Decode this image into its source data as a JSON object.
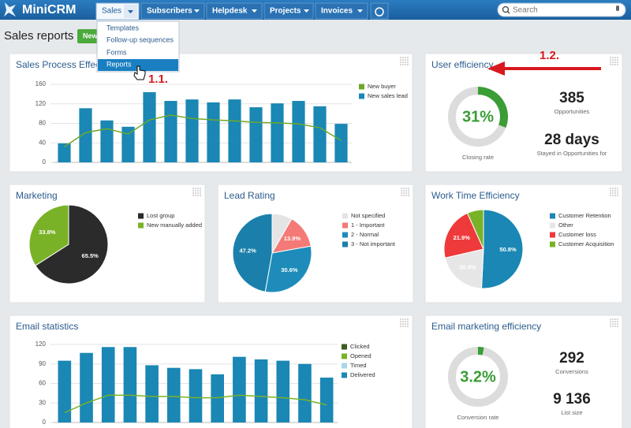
{
  "nav": {
    "logo": "MiniCRM",
    "tabs": [
      "Sales",
      "Subscribers",
      "Helpdesk",
      "Projects",
      "Invoices"
    ],
    "search": "Search"
  },
  "header": {
    "title": "Sales reports",
    "button": "New"
  },
  "menu": {
    "items": [
      "Templates",
      "Follow-up sequences",
      "Forms",
      "Reports"
    ]
  },
  "annotations": [
    "1.1.",
    "1.2."
  ],
  "chart_data": [
    {
      "type": "bar",
      "title": "Sales Process Effectiveness",
      "ylim": [
        0,
        160
      ],
      "yticks": [
        0,
        40,
        80,
        120,
        160
      ],
      "grid": true,
      "series": [
        {
          "name": "New buyer",
          "type": "line",
          "color": "#6fa82a",
          "values": [
            32,
            61,
            69,
            58,
            87,
            97,
            90,
            87,
            85,
            82,
            81,
            79,
            71,
            45
          ]
        },
        {
          "name": "New sales lead",
          "type": "bar",
          "color": "#1a87b4",
          "values": [
            39,
            111,
            86,
            73,
            144,
            126,
            129,
            123,
            129,
            113,
            121,
            126,
            115,
            79
          ]
        }
      ]
    },
    {
      "type": "gauge",
      "title": "User efficiency",
      "values": [
        31
      ],
      "value_labels": [
        "31%"
      ],
      "color": "#3a9d35",
      "caption": "Closing rate",
      "stats": [
        {
          "value": "385",
          "label": "Opportunities"
        },
        {
          "value": "28 days",
          "label": "Stayed in Opportunities for"
        }
      ]
    },
    {
      "type": "pie",
      "title": "Marketing",
      "categories": [
        "Lost group",
        "New manually added"
      ],
      "values": [
        65.5,
        33.8
      ],
      "value_labels": [
        "65.5%",
        "33.8%"
      ],
      "colors": [
        "#2b2b2b",
        "#7ab227"
      ]
    },
    {
      "type": "pie",
      "title": "Lead Rating",
      "categories": [
        "Not specified",
        "1 - Important",
        "2 - Normal",
        "3 - Not important"
      ],
      "values": [
        8.3,
        13.9,
        30.6,
        47.2
      ],
      "value_labels": [
        null,
        "13.9%",
        "30.6%",
        "47.2%"
      ],
      "colors": [
        "#e4e4e4",
        "#f37a76",
        "#1e8cba",
        "#1a80ab"
      ]
    },
    {
      "type": "pie",
      "title": "Work Time Efficiency",
      "categories": [
        "Customer Retention",
        "Other",
        "Customer loss",
        "Customer Acquisition"
      ],
      "values": [
        50.8,
        20.6,
        21.9,
        6.7
      ],
      "value_labels": [
        "50.8%",
        "20.6%",
        "21.9%",
        null
      ],
      "colors": [
        "#1a87b4",
        "#e6e6e6",
        "#ee3a3a",
        "#7ab227"
      ]
    },
    {
      "type": "bar",
      "title": "Email statistics",
      "ylim": [
        0,
        120
      ],
      "yticks": [
        0,
        30,
        60,
        90,
        120
      ],
      "grid": true,
      "series": [
        {
          "name": "Clicked",
          "type": "line",
          "color": "#3f5b1f",
          "values": [
            null,
            null,
            null,
            null,
            null,
            null,
            null,
            null,
            null,
            null,
            null,
            null,
            null
          ]
        },
        {
          "name": "Opened",
          "type": "line",
          "color": "#7ab227",
          "values": [
            15,
            30,
            42,
            42,
            40,
            40,
            38,
            38,
            42,
            40,
            38,
            35,
            27
          ]
        },
        {
          "name": "Timed",
          "type": "line",
          "color": "#a8d8ea",
          "values": [
            null,
            null,
            null,
            null,
            null,
            null,
            null,
            null,
            null,
            null,
            null,
            null,
            null
          ]
        },
        {
          "name": "Delivered",
          "type": "bar",
          "color": "#1a87b4",
          "values": [
            95,
            107,
            116,
            116,
            88,
            84,
            82,
            74,
            101,
            97,
            95,
            90,
            69
          ]
        }
      ]
    },
    {
      "type": "gauge",
      "title": "Email marketing efficiency",
      "values": [
        3.2
      ],
      "value_labels": [
        "3.2%"
      ],
      "color": "#3a9d35",
      "caption": "Conversion rate",
      "stats": [
        {
          "value": "292",
          "label": "Conversions"
        },
        {
          "value": "9 136",
          "label": "List size"
        }
      ]
    }
  ]
}
